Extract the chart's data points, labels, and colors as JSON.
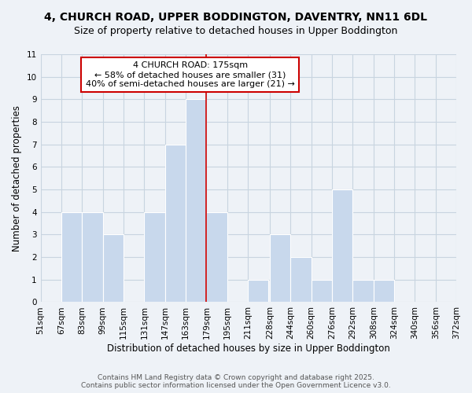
{
  "title1": "4, CHURCH ROAD, UPPER BODDINGTON, DAVENTRY, NN11 6DL",
  "title2": "Size of property relative to detached houses in Upper Boddington",
  "xlabel": "Distribution of detached houses by size in Upper Boddington",
  "ylabel": "Number of detached properties",
  "bin_edges": [
    51,
    67,
    83,
    99,
    115,
    131,
    147,
    163,
    179,
    195,
    211,
    228,
    244,
    260,
    276,
    292,
    308,
    324,
    340,
    356,
    372
  ],
  "bin_labels": [
    "51sqm",
    "67sqm",
    "83sqm",
    "99sqm",
    "115sqm",
    "131sqm",
    "147sqm",
    "163sqm",
    "179sqm",
    "195sqm",
    "211sqm",
    "228sqm",
    "244sqm",
    "260sqm",
    "276sqm",
    "292sqm",
    "308sqm",
    "324sqm",
    "340sqm",
    "356sqm",
    "372sqm"
  ],
  "counts": [
    0,
    4,
    4,
    3,
    0,
    4,
    7,
    9,
    4,
    0,
    1,
    3,
    2,
    1,
    5,
    1,
    1,
    0,
    0,
    0
  ],
  "bar_color": "#c8d8ec",
  "reference_line_x": 179,
  "reference_line_color": "#cc0000",
  "annotation_title": "4 CHURCH ROAD: 175sqm",
  "annotation_line1": "← 58% of detached houses are smaller (31)",
  "annotation_line2": "40% of semi-detached houses are larger (21) →",
  "ylim": [
    0,
    11
  ],
  "yticks": [
    0,
    1,
    2,
    3,
    4,
    5,
    6,
    7,
    8,
    9,
    10,
    11
  ],
  "background_color": "#eef2f7",
  "grid_color": "#c8d4e0",
  "footer1": "Contains HM Land Registry data © Crown copyright and database right 2025.",
  "footer2": "Contains public sector information licensed under the Open Government Licence v3.0."
}
